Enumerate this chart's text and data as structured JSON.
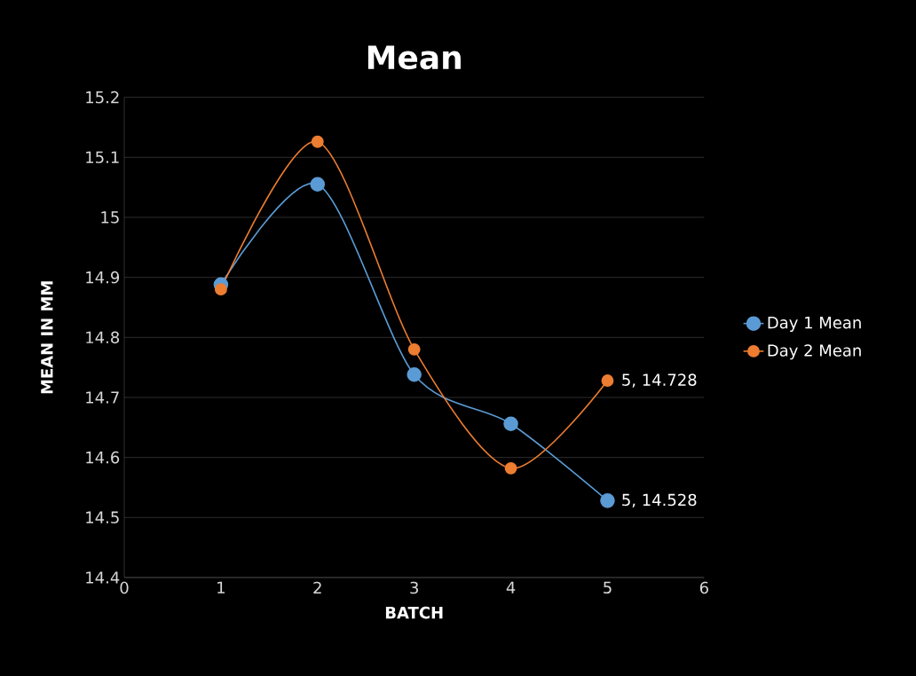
{
  "chart_data": {
    "type": "line",
    "title": "Mean",
    "xlabel": "BATCH",
    "ylabel": "MEAN IN MM",
    "x": [
      1,
      2,
      3,
      4,
      5
    ],
    "series": [
      {
        "name": "Day 1 Mean",
        "color": "#5b9bd5",
        "values": [
          14.888,
          15.055,
          14.738,
          14.656,
          14.528
        ]
      },
      {
        "name": "Day 2 Mean",
        "color": "#ed7d31",
        "values": [
          14.88,
          15.126,
          14.78,
          14.582,
          14.728
        ]
      }
    ],
    "annotations": [
      {
        "text": "5, 14.728",
        "x": 5,
        "y": 14.728
      },
      {
        "text": "5, 14.528",
        "x": 5,
        "y": 14.528
      }
    ],
    "xlim": [
      0,
      6
    ],
    "ylim": [
      14.4,
      15.2
    ],
    "xticks": [
      0,
      1,
      2,
      3,
      4,
      5,
      6
    ],
    "yticks": [
      14.4,
      14.5,
      14.6,
      14.7,
      14.8,
      14.9,
      15,
      15.1,
      15.2
    ],
    "grid": "y",
    "legend": "right",
    "marker": "circle",
    "line_style": "solid"
  }
}
